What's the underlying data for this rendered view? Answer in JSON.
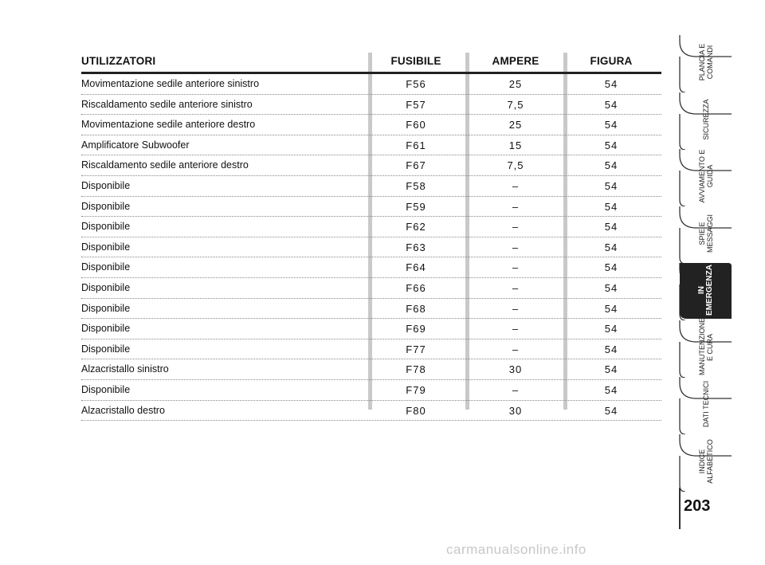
{
  "table": {
    "headers": {
      "users": "UTILIZZATORI",
      "fuse": "FUSIBILE",
      "ampere": "AMPERE",
      "figure": "FIGURA"
    },
    "rows": [
      {
        "name": "Movimentazione sedile anteriore sinistro",
        "fuse": "F56",
        "ampere": "25",
        "figure": "54"
      },
      {
        "name": "Riscaldamento sedile anteriore sinistro",
        "fuse": "F57",
        "ampere": "7,5",
        "figure": "54"
      },
      {
        "name": "Movimentazione sedile anteriore destro",
        "fuse": "F60",
        "ampere": "25",
        "figure": "54"
      },
      {
        "name": "Amplificatore Subwoofer",
        "fuse": "F61",
        "ampere": "15",
        "figure": "54"
      },
      {
        "name": "Riscaldamento sedile anteriore destro",
        "fuse": "F67",
        "ampere": "7,5",
        "figure": "54"
      },
      {
        "name": "Disponibile",
        "fuse": "F58",
        "ampere": "–",
        "figure": "54"
      },
      {
        "name": "Disponibile",
        "fuse": "F59",
        "ampere": "–",
        "figure": "54"
      },
      {
        "name": "Disponibile",
        "fuse": "F62",
        "ampere": "–",
        "figure": "54"
      },
      {
        "name": "Disponibile",
        "fuse": "F63",
        "ampere": "–",
        "figure": "54"
      },
      {
        "name": "Disponibile",
        "fuse": "F64",
        "ampere": "–",
        "figure": "54"
      },
      {
        "name": "Disponibile",
        "fuse": "F66",
        "ampere": "–",
        "figure": "54"
      },
      {
        "name": "Disponibile",
        "fuse": "F68",
        "ampere": "–",
        "figure": "54"
      },
      {
        "name": "Disponibile",
        "fuse": "F69",
        "ampere": "–",
        "figure": "54"
      },
      {
        "name": "Disponibile",
        "fuse": "F77",
        "ampere": "–",
        "figure": "54"
      },
      {
        "name": "Alzacristallo sinistro",
        "fuse": "F78",
        "ampere": "30",
        "figure": "54"
      },
      {
        "name": "Disponibile",
        "fuse": "F79",
        "ampere": "–",
        "figure": "54"
      },
      {
        "name": "Alzacristallo destro",
        "fuse": "F80",
        "ampere": "30",
        "figure": "54"
      }
    ]
  },
  "sidebar": {
    "tabs": [
      {
        "label": "PLANCIA E COMANDI",
        "active": false
      },
      {
        "label": "SICUREZZA",
        "active": false
      },
      {
        "label": "AVVIAMENTO E GUIDA",
        "active": false
      },
      {
        "label": "SPIE E MESSAGGI",
        "active": false
      },
      {
        "label": "IN EMERGENZA",
        "active": true
      },
      {
        "label": "MANUTENZIONE E CURA",
        "active": false
      },
      {
        "label": "DATI TECNICI",
        "active": false
      },
      {
        "label": "INDICE ALFABETICO",
        "active": false
      }
    ],
    "active_color": "#222222"
  },
  "page_number": "203",
  "watermark": "carmanualsonline.info"
}
